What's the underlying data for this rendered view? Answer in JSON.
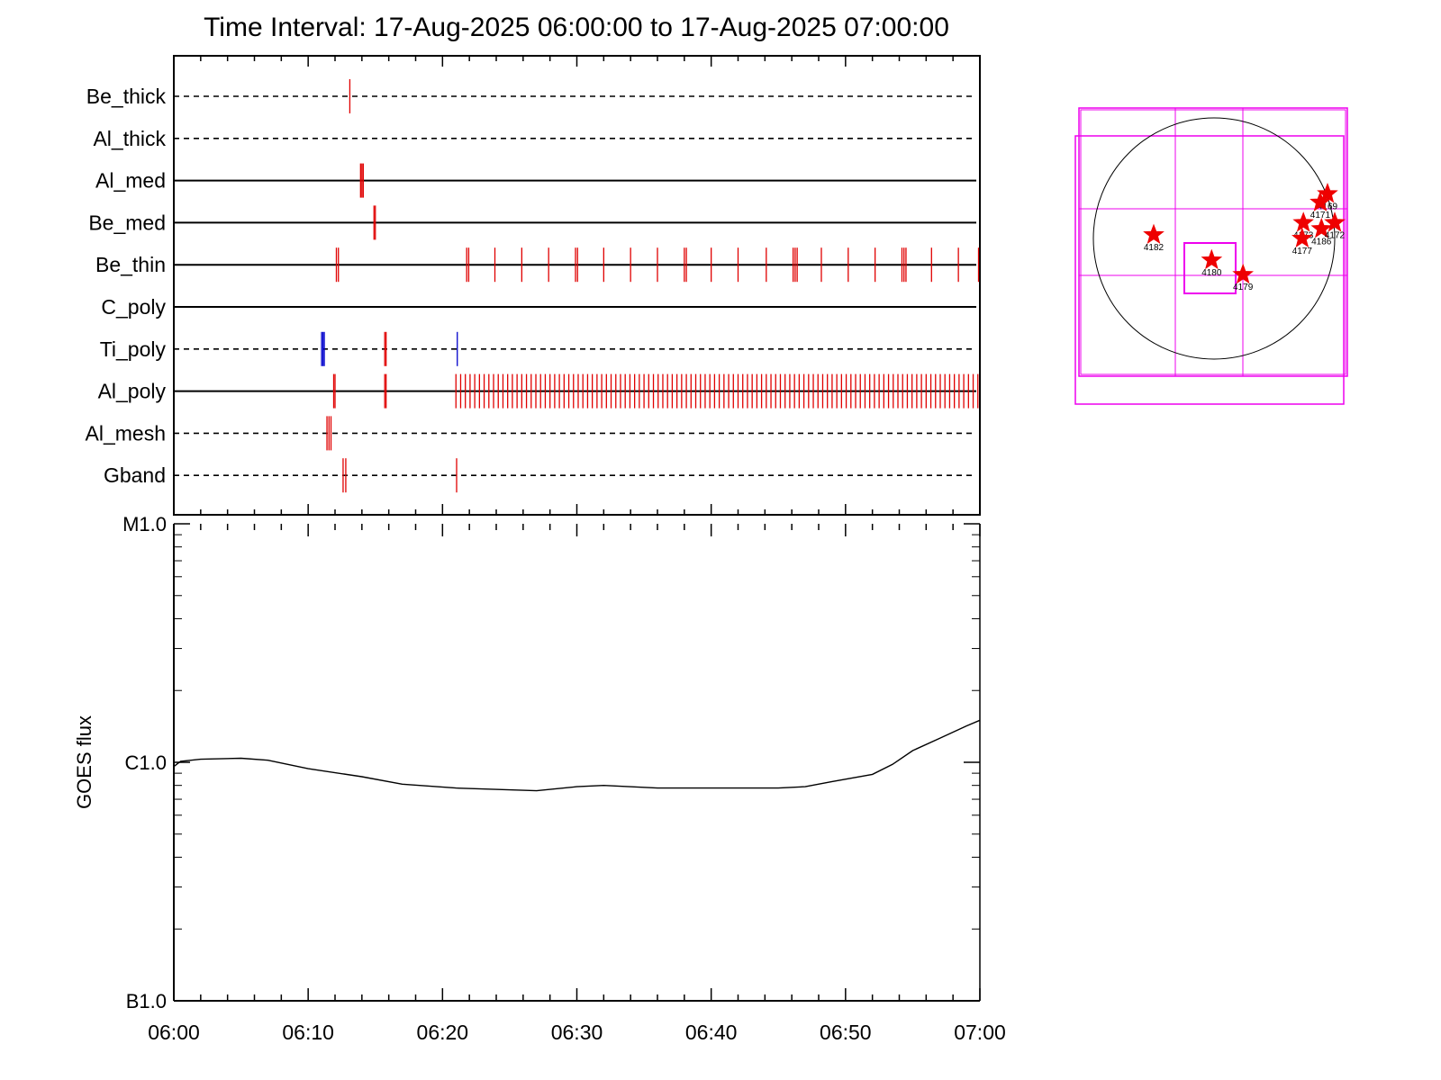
{
  "chart_data": [
    {
      "type": "event-timeline",
      "title": "Time Interval: 17-Aug-2025 06:00:00 to 17-Aug-2025 07:00:00",
      "x_range_minutes": [
        0,
        60
      ],
      "x_ticks": [
        "06:00",
        "06:10",
        "06:20",
        "06:30",
        "06:40",
        "06:50",
        "07:00"
      ],
      "rows": [
        {
          "name": "Be_thick",
          "line": "dashed",
          "events": [
            {
              "t": 13.1,
              "color": "#e00000"
            }
          ]
        },
        {
          "name": "Al_thick",
          "line": "dashed",
          "events": []
        },
        {
          "name": "Al_med",
          "line": "solid",
          "events": [
            {
              "t": 13.9,
              "color": "#e00000"
            },
            {
              "t": 14.0,
              "color": "#e00000"
            },
            {
              "t": 14.1,
              "color": "#e00000"
            }
          ]
        },
        {
          "name": "Be_med",
          "line": "solid",
          "events": [
            {
              "t": 14.9,
              "color": "#e00000"
            },
            {
              "t": 15.0,
              "color": "#e00000"
            }
          ]
        },
        {
          "name": "Be_thin",
          "line": "solid",
          "events": [
            {
              "t": 12.1,
              "color": "#e00000"
            },
            {
              "t": 12.25,
              "color": "#e00000"
            },
            {
              "t": 21.8,
              "color": "#e00000"
            },
            {
              "t": 21.95,
              "color": "#e00000"
            },
            {
              "t": 23.9,
              "color": "#e00000"
            },
            {
              "t": 25.9,
              "color": "#e00000"
            },
            {
              "t": 27.9,
              "color": "#e00000"
            },
            {
              "t": 29.9,
              "color": "#e00000"
            },
            {
              "t": 30.05,
              "color": "#e00000"
            },
            {
              "t": 32.0,
              "color": "#e00000"
            },
            {
              "t": 34.0,
              "color": "#e00000"
            },
            {
              "t": 36.0,
              "color": "#e00000"
            },
            {
              "t": 38.0,
              "color": "#e00000"
            },
            {
              "t": 38.15,
              "color": "#e00000"
            },
            {
              "t": 40.0,
              "color": "#e00000"
            },
            {
              "t": 42.0,
              "color": "#e00000"
            },
            {
              "t": 44.1,
              "color": "#e00000"
            },
            {
              "t": 46.1,
              "color": "#e00000"
            },
            {
              "t": 46.25,
              "color": "#e00000"
            },
            {
              "t": 46.4,
              "color": "#e00000"
            },
            {
              "t": 48.2,
              "color": "#e00000"
            },
            {
              "t": 50.2,
              "color": "#e00000"
            },
            {
              "t": 52.2,
              "color": "#e00000"
            },
            {
              "t": 54.2,
              "color": "#e00000"
            },
            {
              "t": 54.35,
              "color": "#e00000"
            },
            {
              "t": 54.5,
              "color": "#e00000"
            },
            {
              "t": 56.4,
              "color": "#e00000"
            },
            {
              "t": 58.4,
              "color": "#e00000"
            },
            {
              "t": 59.9,
              "color": "#e00000"
            }
          ]
        },
        {
          "name": "C_poly",
          "line": "solid",
          "events": []
        },
        {
          "name": "Ti_poly",
          "line": "dashed",
          "events": [
            {
              "t": 11.0,
              "color": "#0000cc"
            },
            {
              "t": 11.1,
              "color": "#0000cc"
            },
            {
              "t": 11.2,
              "color": "#0000cc"
            },
            {
              "t": 15.7,
              "color": "#e00000"
            },
            {
              "t": 15.8,
              "color": "#e00000"
            },
            {
              "t": 21.1,
              "color": "#0000cc"
            }
          ]
        },
        {
          "name": "Al_poly",
          "line": "solid",
          "events": "generated"
        },
        {
          "name": "Al_mesh",
          "line": "dashed",
          "events": [
            {
              "t": 11.4,
              "color": "#e00000"
            },
            {
              "t": 11.55,
              "color": "#e00000"
            },
            {
              "t": 11.7,
              "color": "#e00000"
            }
          ]
        },
        {
          "name": "Gband",
          "line": "dashed",
          "events": [
            {
              "t": 12.6,
              "color": "#e00000"
            },
            {
              "t": 12.8,
              "color": "#e00000"
            },
            {
              "t": 21.05,
              "color": "#e00000"
            }
          ]
        }
      ],
      "al_poly_events": {
        "early": [
          11.9,
          12.0,
          15.7,
          15.8
        ],
        "dense_start": 21.0,
        "dense_end": 59.9,
        "dense_step": 0.35,
        "color": "#e00000"
      }
    },
    {
      "type": "line",
      "ylabel": "GOES flux",
      "y_scale": "log",
      "y_ticks": [
        {
          "label": "B1.0",
          "value": 1e-07
        },
        {
          "label": "C1.0",
          "value": 1e-06
        },
        {
          "label": "M1.0",
          "value": 1e-05
        }
      ],
      "x_ticks": [
        "06:00",
        "06:10",
        "06:20",
        "06:30",
        "06:40",
        "06:50",
        "07:00"
      ],
      "x_range_minutes": [
        0,
        60
      ],
      "series": [
        {
          "x": [
            0,
            0.5,
            2,
            5,
            7,
            10,
            14,
            17,
            21,
            27,
            30,
            32,
            36,
            40,
            45,
            47,
            49,
            52,
            53.5,
            55,
            57,
            59,
            60
          ],
          "y": [
            9.6e-07,
            1.01e-06,
            1.03e-06,
            1.04e-06,
            1.02e-06,
            9.4e-07,
            8.7e-07,
            8.1e-07,
            7.8e-07,
            7.6e-07,
            7.9e-07,
            8e-07,
            7.8e-07,
            7.8e-07,
            7.8e-07,
            7.9e-07,
            8.3e-07,
            8.9e-07,
            9.8e-07,
            1.12e-06,
            1.26e-06,
            1.42e-06,
            1.5e-06
          ]
        }
      ]
    },
    {
      "type": "sun-map",
      "regions": [
        {
          "label": "4182",
          "x": -0.5,
          "y": 0.03
        },
        {
          "label": "4180",
          "x": -0.02,
          "y": -0.18
        },
        {
          "label": "4179",
          "x": 0.24,
          "y": -0.3
        },
        {
          "label": "4169",
          "x": 0.94,
          "y": 0.37
        },
        {
          "label": "4171",
          "x": 0.88,
          "y": 0.3
        },
        {
          "label": "4173",
          "x": 0.74,
          "y": 0.13
        },
        {
          "label": "4177",
          "x": 0.73,
          "y": 0.0
        },
        {
          "label": "4186",
          "x": 0.89,
          "y": 0.08
        },
        {
          "label": "4172",
          "x": 1.0,
          "y": 0.13
        }
      ]
    }
  ]
}
